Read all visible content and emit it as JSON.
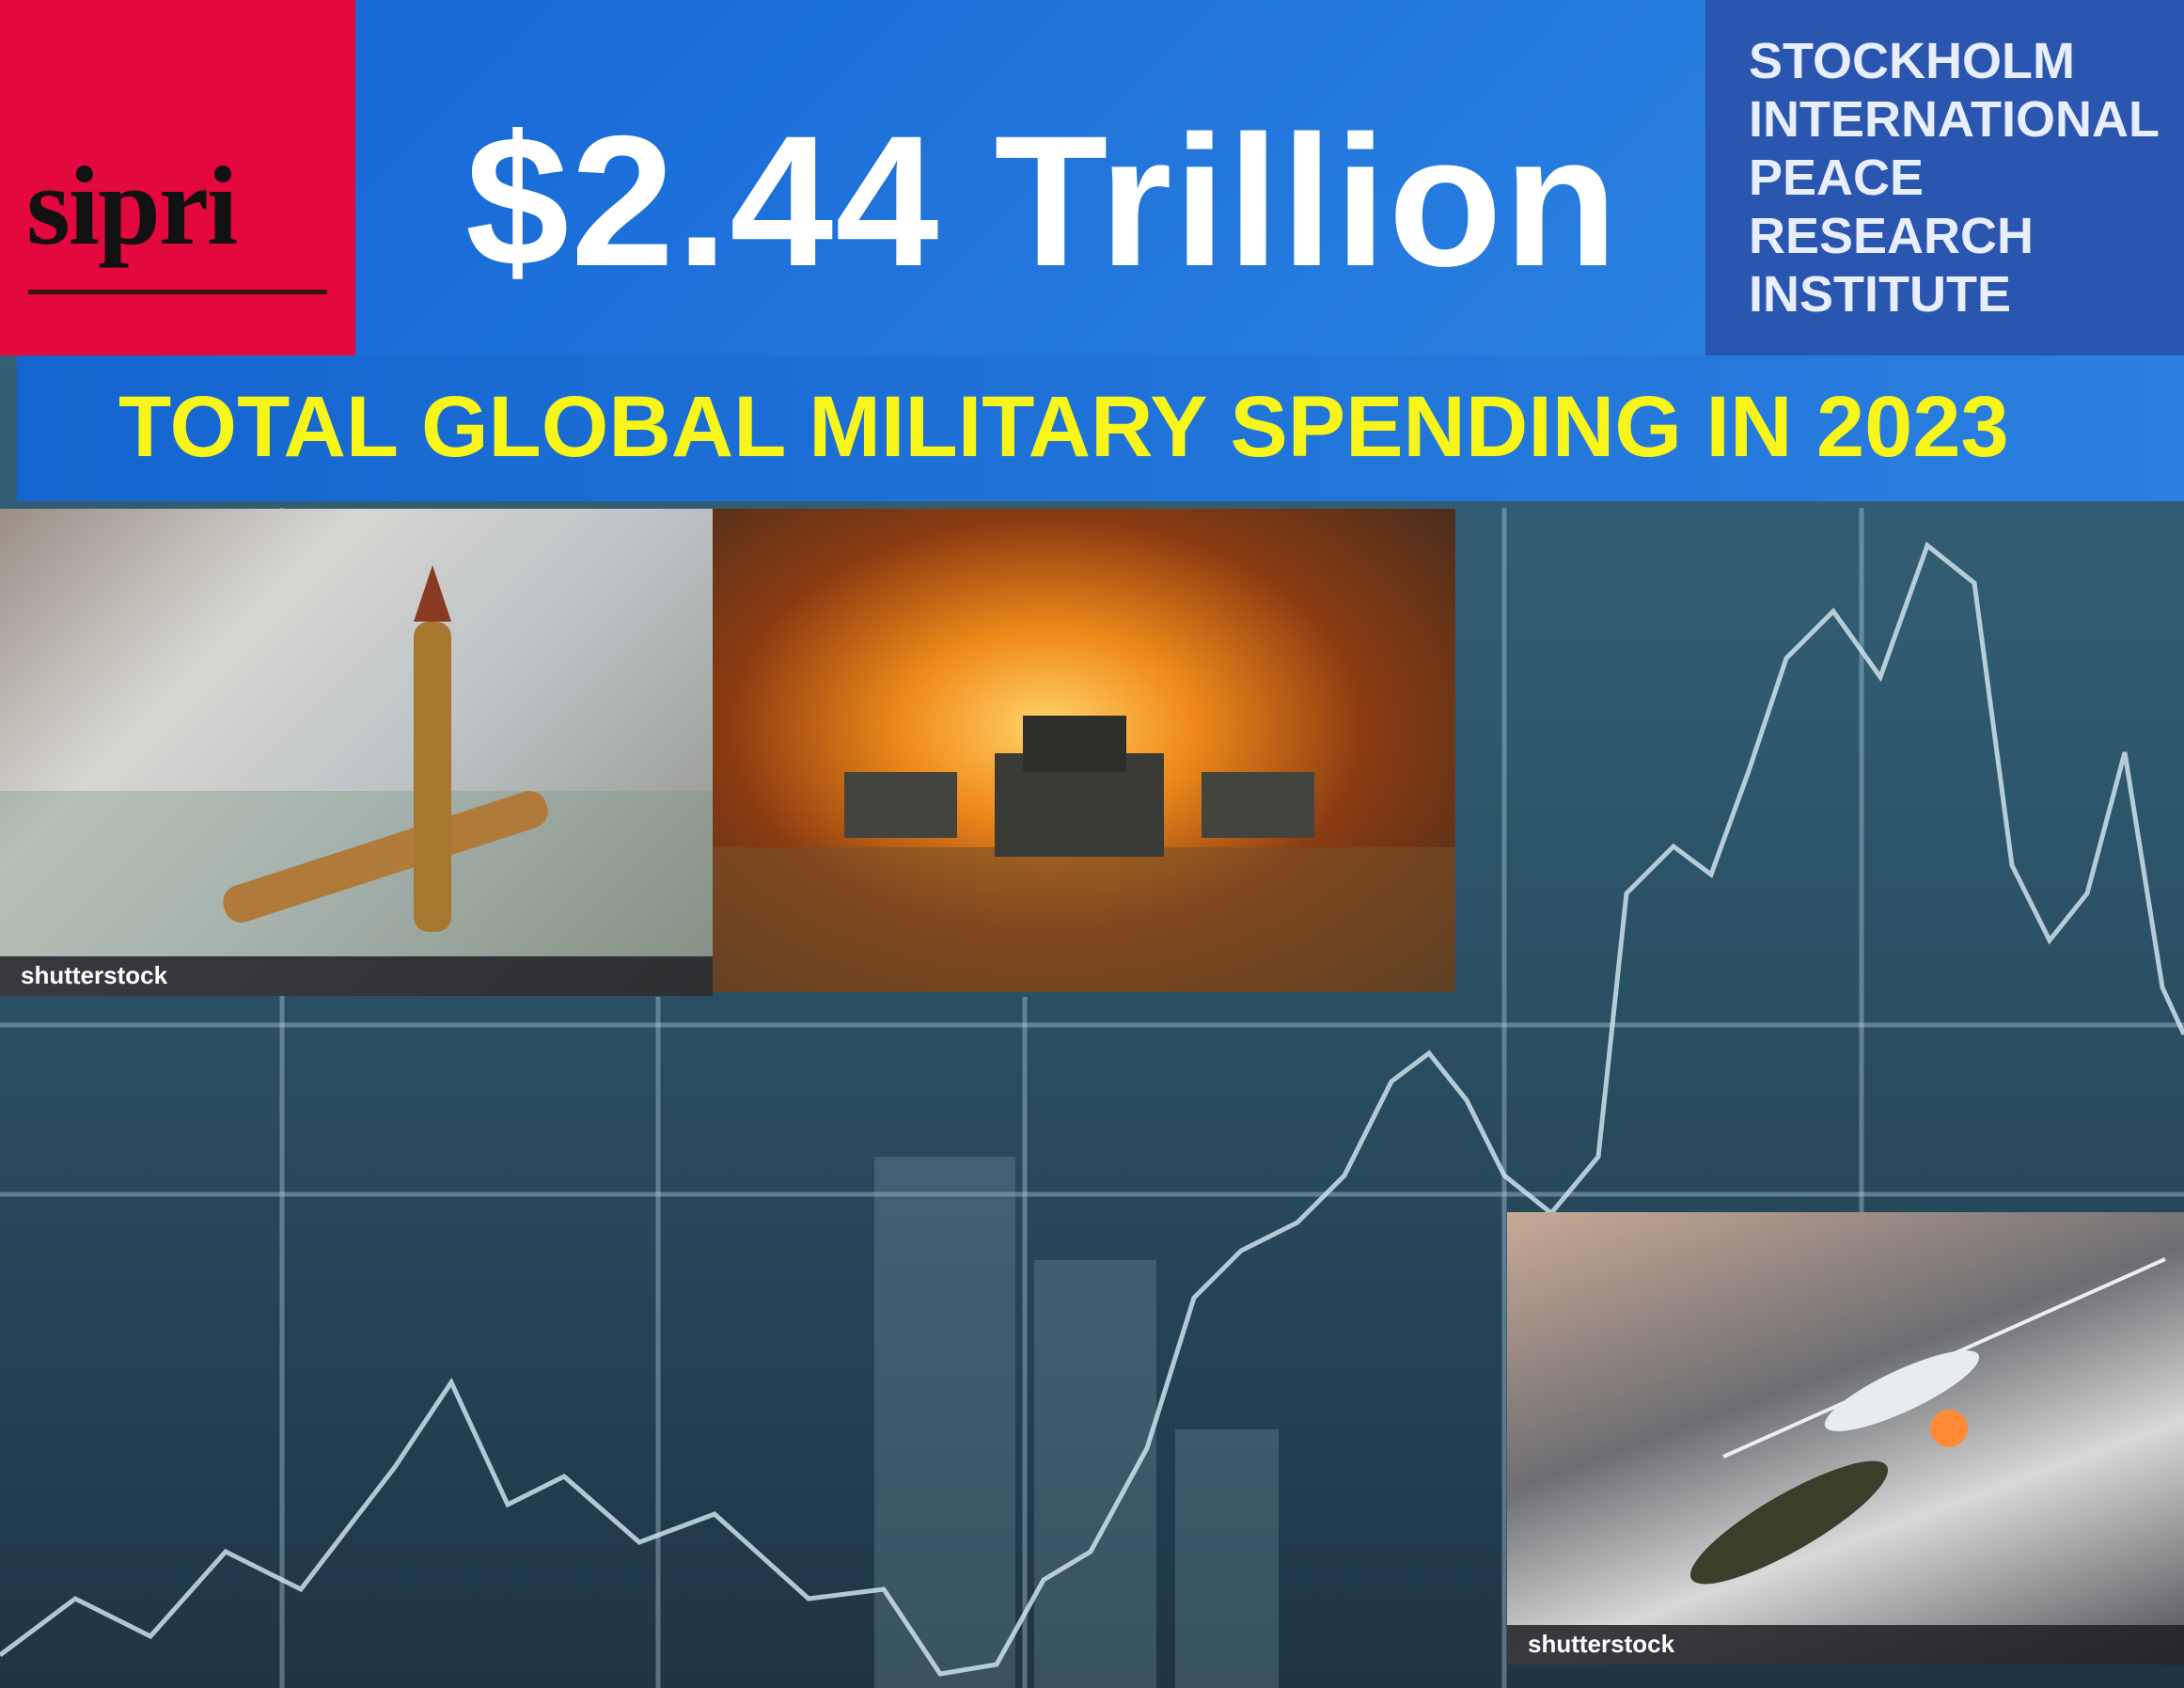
{
  "logo": {
    "text": "sipri"
  },
  "headline": "$2.44 Trillion",
  "organization": {
    "lines": [
      "STOCKHOLM",
      "INTERNATIONAL",
      "PEACE",
      "RESEARCH",
      "INSTITUTE"
    ]
  },
  "subtitle": "TOTAL GLOBAL MILITARY SPENDING IN 2023",
  "photos": [
    {
      "subject": "money-and-bullets",
      "watermark": "shutterstock"
    },
    {
      "subject": "tank-battle-explosion"
    },
    {
      "subject": "drone-firing-missile",
      "watermark": "shutterstock"
    }
  ],
  "colors": {
    "logo_bg": "#e3083e",
    "header_blue": "#1f74da",
    "org_blue": "#2b56b0",
    "subtitle_yellow": "#f7f51a"
  }
}
